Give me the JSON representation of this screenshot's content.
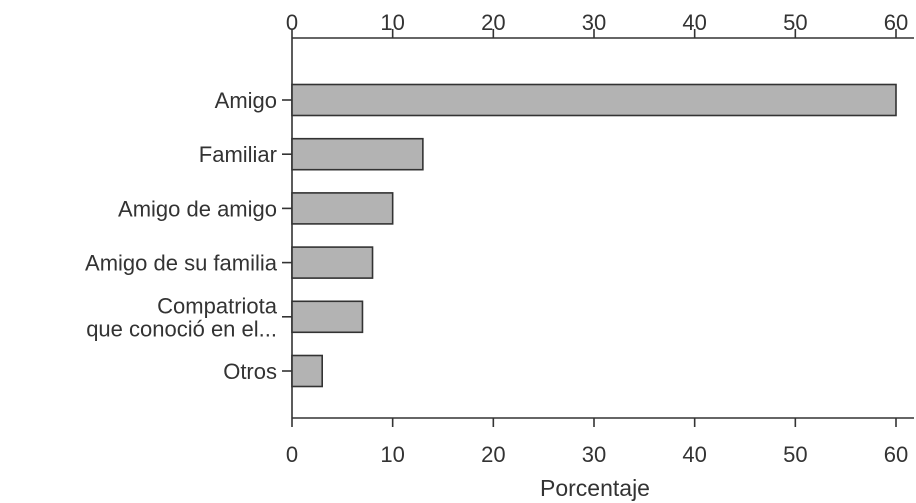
{
  "chart_data": {
    "type": "bar",
    "orientation": "horizontal",
    "categories": [
      [
        "Amigo"
      ],
      [
        "Familiar"
      ],
      [
        "Amigo de amigo"
      ],
      [
        "Amigo de su familia"
      ],
      [
        "Compatriota",
        "que conoció en el..."
      ],
      [
        "Otros"
      ]
    ],
    "values": [
      60,
      13,
      10,
      8,
      7,
      3
    ],
    "xlabel": "Porcentaje",
    "xlim": [
      0,
      60
    ],
    "xticks": [
      0,
      10,
      20,
      30,
      40,
      50,
      60
    ],
    "tick_axes": [
      "top",
      "bottom"
    ],
    "grid": false,
    "colors": {
      "bar_fill": "#b3b3b3",
      "bar_stroke": "#333333",
      "text": "#333333"
    }
  }
}
